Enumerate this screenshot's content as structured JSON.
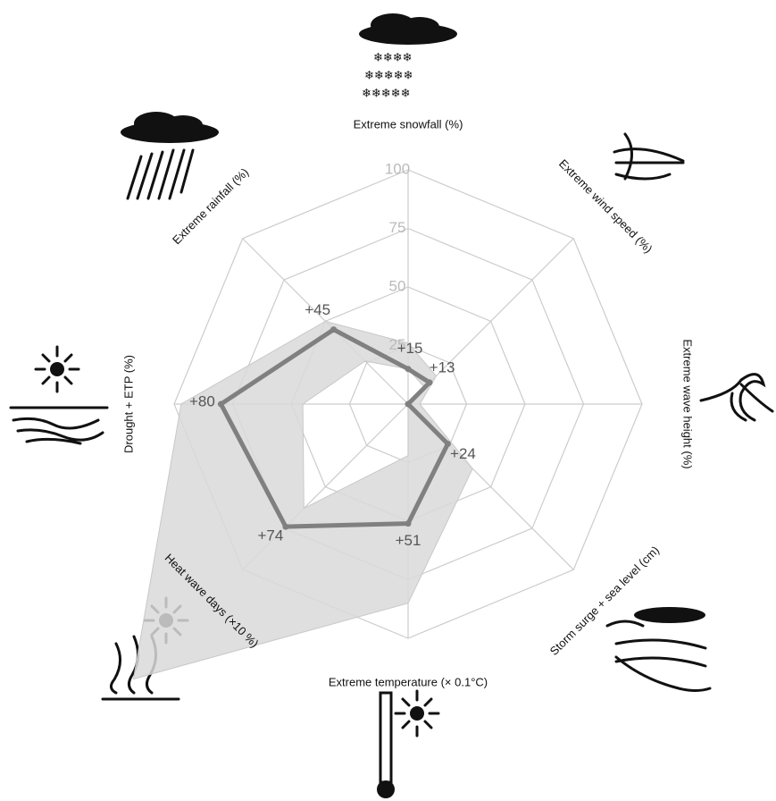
{
  "chart_data": {
    "type": "radar",
    "categories": [
      "Extreme snowfall (%)",
      "Extreme wind speed (%)",
      "Extreme wave height (%)",
      "Storm surge + sea level (cm)",
      "Extreme temperature (× 0.1°C)",
      "Heat wave days (×10 %)",
      "Drought + ETP (%)",
      "Extreme rainfall (%)"
    ],
    "rlim": [
      0,
      100
    ],
    "rticks": [
      25,
      50,
      75,
      100
    ],
    "grid": true,
    "range": {
      "color": "#d9d9d9",
      "high": [
        26,
        17,
        5,
        39,
        85,
        166,
        97,
        50
      ],
      "low": [
        15,
        10,
        0,
        0,
        22,
        63,
        45,
        26
      ]
    },
    "series": [
      {
        "color": "#808080",
        "values": [
          15,
          13,
          0,
          24,
          51,
          74,
          80,
          45
        ],
        "value_labels": [
          "+15",
          "+13",
          null,
          "+24",
          "+51",
          "+74",
          "+80",
          "+45"
        ]
      }
    ]
  }
}
